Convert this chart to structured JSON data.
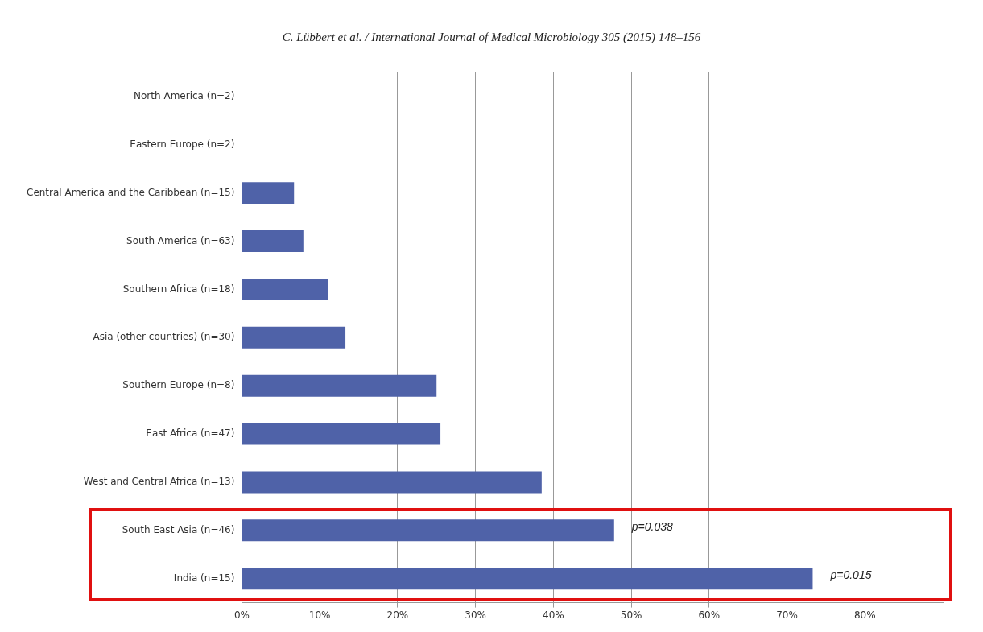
{
  "chart_data": {
    "type": "bar",
    "orientation": "horizontal",
    "title": "C. Lübbert et al. / International Journal of Medical Microbiology 305 (2015) 148–156",
    "categories": [
      "North America (n=2)",
      "Eastern Europe (n=2)",
      "Central America and the Caribbean (n=15)",
      "South America (n=63)",
      "Southern Africa (n=18)",
      "Asia (other countries) (n=30)",
      "Southern Europe (n=8)",
      "East Africa (n=47)",
      "West and Central Africa (n=13)",
      "South East Asia (n=46)",
      "India (n=15)"
    ],
    "values": [
      0,
      0,
      6.7,
      7.9,
      11.1,
      13.3,
      25,
      25.5,
      38.5,
      47.8,
      73.3
    ],
    "color": "#4f62a8",
    "xlim": [
      0,
      90
    ],
    "xticks": [
      {
        "value": 0,
        "label": "0%"
      },
      {
        "value": 10,
        "label": "10%"
      },
      {
        "value": 20,
        "label": "20%"
      },
      {
        "value": 30,
        "label": "30%"
      },
      {
        "value": 40,
        "label": "40%"
      },
      {
        "value": 50,
        "label": "50%"
      },
      {
        "value": 60,
        "label": "60%"
      },
      {
        "value": 70,
        "label": "70%"
      },
      {
        "value": 80,
        "label": "80%"
      }
    ],
    "grid": "x",
    "annotations": [
      {
        "text": "p=0.038",
        "x": 47.8,
        "y": "South East Asia (n=46)"
      },
      {
        "text": "p=0.015",
        "x": 73.3,
        "y": "India (n=15)"
      }
    ]
  }
}
